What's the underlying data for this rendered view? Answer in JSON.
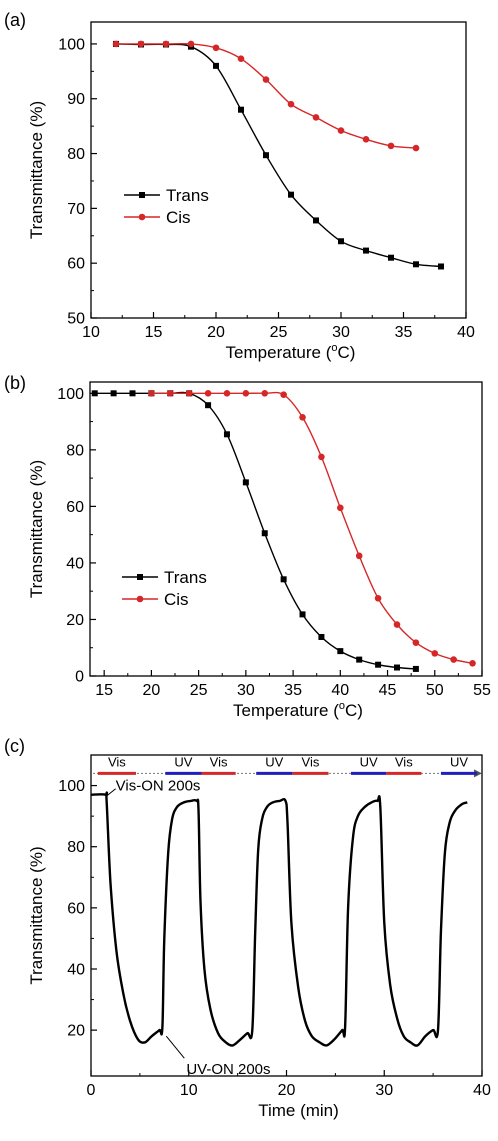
{
  "chart_data": [
    {
      "panel": "(a)",
      "type": "line",
      "xlabel": "Temperature (°C)",
      "ylabel": "Transmittance (%)",
      "xlim": [
        10,
        40
      ],
      "ylim": [
        50,
        104
      ],
      "xticks": [
        10,
        15,
        20,
        25,
        30,
        35,
        40
      ],
      "yticks": [
        50,
        60,
        70,
        80,
        90,
        100
      ],
      "legend_position": "center-left",
      "series": [
        {
          "name": "Trans",
          "color": "#000000",
          "marker": "square",
          "x": [
            12,
            14,
            16,
            18,
            20,
            22,
            24,
            26,
            28,
            30,
            32,
            34,
            36,
            38
          ],
          "y": [
            100,
            99.9,
            99.9,
            99.5,
            96,
            88,
            79.7,
            72.5,
            67.8,
            64,
            62.3,
            61,
            59.8,
            59.4
          ]
        },
        {
          "name": "Cis",
          "color": "#d62728",
          "marker": "circle",
          "x": [
            12,
            14,
            16,
            18,
            20,
            22,
            24,
            26,
            28,
            30,
            32,
            34,
            36
          ],
          "y": [
            100,
            100,
            100,
            100,
            99.3,
            97.3,
            93.5,
            89,
            86.6,
            84.2,
            82.6,
            81.4,
            81
          ]
        }
      ]
    },
    {
      "panel": "(b)",
      "type": "line",
      "xlabel": "Temperature (°C)",
      "ylabel": "Transmittance (%)",
      "xlim": [
        13.5,
        55
      ],
      "ylim": [
        0,
        104
      ],
      "xticks": [
        15,
        20,
        25,
        30,
        35,
        40,
        45,
        50,
        55
      ],
      "yticks": [
        0,
        20,
        40,
        60,
        80,
        100
      ],
      "legend_position": "center-left",
      "series": [
        {
          "name": "Trans",
          "color": "#000000",
          "marker": "square",
          "x": [
            14,
            16,
            18,
            20,
            22,
            24,
            26,
            28,
            30,
            32,
            34,
            36,
            38,
            40,
            42,
            44,
            46,
            48
          ],
          "y": [
            100,
            100,
            100,
            100,
            100,
            100,
            95.8,
            85.5,
            68.5,
            50.5,
            34.2,
            21.8,
            13.8,
            8.8,
            5.8,
            4,
            3,
            2.5
          ]
        },
        {
          "name": "Cis",
          "color": "#d62728",
          "marker": "circle",
          "x": [
            20,
            22,
            24,
            26,
            28,
            30,
            32,
            34,
            36,
            38,
            40,
            42,
            44,
            46,
            48,
            50,
            52,
            54
          ],
          "y": [
            100,
            100,
            100,
            100,
            100,
            100,
            100,
            99.5,
            91.5,
            77.5,
            59.5,
            42.5,
            27.5,
            18.2,
            11.8,
            8,
            5.8,
            4.5
          ]
        }
      ]
    },
    {
      "panel": "(c)",
      "type": "line",
      "xlabel": "Time (min)",
      "ylabel": "Transmittance (%)",
      "xlim": [
        0,
        40
      ],
      "ylim": [
        5,
        110
      ],
      "xticks": [
        0,
        10,
        20,
        30,
        40
      ],
      "yticks": [
        20,
        40,
        60,
        80,
        100
      ],
      "annotations": [
        {
          "text": "Vis-ON 200s",
          "x": 1.5,
          "y": 97
        },
        {
          "text": "UV-ON 200s",
          "x": 7.5,
          "y": 20
        }
      ],
      "illumination_bands": [
        {
          "label": "Vis",
          "color": "#d62728",
          "start": 0.7,
          "end": 4.6
        },
        {
          "label": "UV",
          "color": "#1f1fbf",
          "start": 7.6,
          "end": 11.3
        },
        {
          "label": "Vis",
          "color": "#d62728",
          "start": 11.3,
          "end": 14.8
        },
        {
          "label": "UV",
          "color": "#1f1fbf",
          "start": 16.9,
          "end": 20.6
        },
        {
          "label": "Vis",
          "color": "#d62728",
          "start": 20.6,
          "end": 24.3
        },
        {
          "label": "UV",
          "color": "#1f1fbf",
          "start": 26.6,
          "end": 30.2
        },
        {
          "label": "Vis",
          "color": "#d62728",
          "start": 30.2,
          "end": 33.8
        },
        {
          "label": "UV",
          "color": "#1f1fbf",
          "start": 35.8,
          "end": 39.5
        }
      ],
      "band_line_value": 104,
      "series": [
        {
          "name": "",
          "color": "#000000",
          "x": [
            0,
            1.5,
            1.6,
            2.0,
            2.6,
            3.3,
            4.0,
            4.8,
            5.5,
            6.2,
            7.0,
            7.3,
            7.5,
            7.9,
            8.3,
            8.8,
            9.5,
            10.2,
            10.8,
            11.0,
            11.2,
            11.6,
            12.2,
            13.0,
            13.8,
            14.5,
            15.3,
            16.0,
            16.5,
            16.8,
            17.1,
            17.5,
            18.0,
            18.6,
            19.3,
            19.9,
            20.1,
            20.5,
            21.2,
            21.9,
            22.6,
            23.4,
            24.1,
            24.9,
            25.7,
            26.0,
            26.3,
            26.8,
            27.3,
            28.0,
            28.7,
            29.3,
            29.6,
            30.0,
            30.6,
            31.3,
            32.0,
            32.7,
            33.4,
            34.2,
            35.0,
            35.5,
            35.8,
            36.2,
            36.7,
            37.3,
            38.0,
            38.5
          ],
          "y": [
            97,
            97,
            95,
            68,
            46,
            32,
            23,
            17,
            16,
            18,
            20,
            21,
            50,
            78,
            89,
            93,
            94.5,
            95,
            95,
            92,
            62,
            40,
            27,
            19,
            16,
            15,
            17,
            19,
            20,
            52,
            79,
            89,
            93,
            94.5,
            95,
            95,
            88,
            55,
            34,
            23,
            18,
            16,
            15,
            17,
            20,
            21,
            60,
            83,
            90,
            93,
            94.5,
            95,
            93,
            55,
            35,
            24,
            18,
            16,
            15,
            18,
            20,
            20,
            52,
            78,
            88,
            92,
            94,
            94.5
          ]
        }
      ]
    }
  ]
}
